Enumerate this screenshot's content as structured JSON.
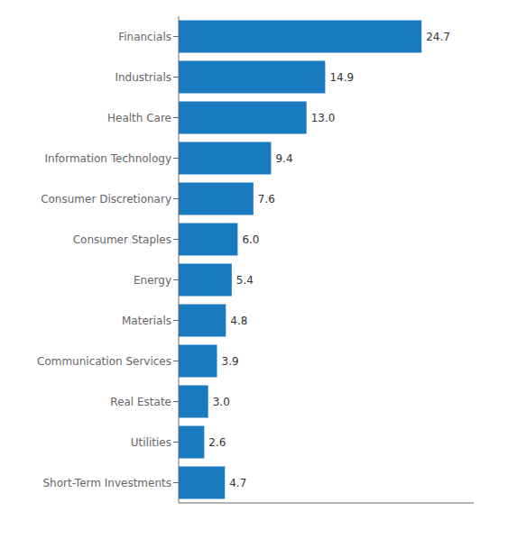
{
  "chart_data": {
    "type": "bar",
    "orientation": "horizontal",
    "categories": [
      "Short-Term Investments",
      "Utilities",
      "Real Estate",
      "Communication Services",
      "Materials",
      "Energy",
      "Consumer Staples",
      "Consumer Discretionary",
      "Information Technology",
      "Health Care",
      "Industrials",
      "Financials"
    ],
    "values": [
      4.7,
      2.6,
      3.0,
      3.9,
      4.8,
      5.4,
      6.0,
      7.6,
      9.4,
      13.0,
      14.9,
      24.7
    ],
    "value_labels": [
      "4.7",
      "2.6",
      "3.0",
      "3.9",
      "4.8",
      "5.4",
      "6.0",
      "7.6",
      "9.4",
      "13.0",
      "14.9",
      "24.7"
    ],
    "color": "#1a7abf",
    "xlim": [
      0,
      30
    ],
    "data_labels": true,
    "tick_labels": "y",
    "grid": false
  }
}
